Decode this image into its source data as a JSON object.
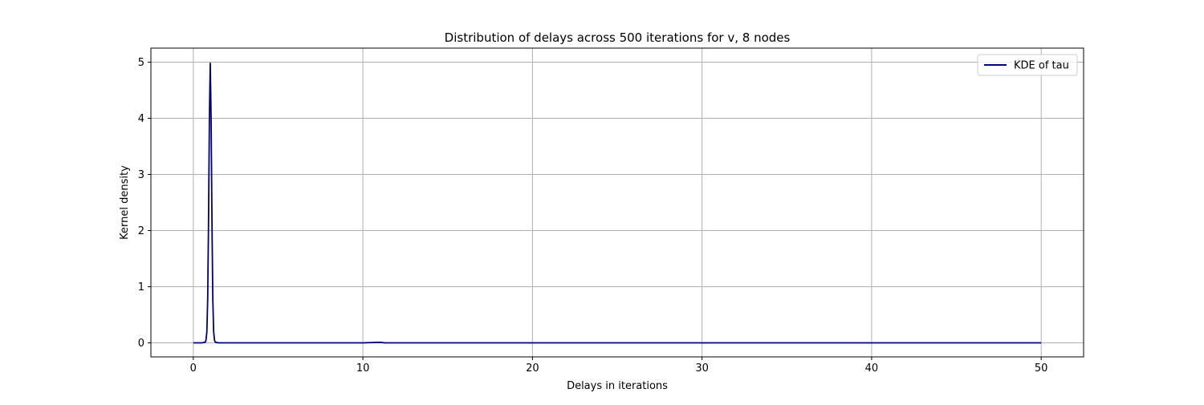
{
  "chart_data": {
    "type": "line",
    "title": "Distribution of delays across 500 iterations for v, 8 nodes",
    "xlabel": "Delays in iterations",
    "ylabel": "Kernel density",
    "xlim": [
      -2.5,
      52.5
    ],
    "ylim": [
      -0.25,
      5.25
    ],
    "x_ticks": [
      0,
      10,
      20,
      30,
      40,
      50
    ],
    "y_ticks": [
      0,
      1,
      2,
      3,
      4,
      5
    ],
    "grid": true,
    "legend_position": "top-right",
    "series": [
      {
        "name": "KDE of tau",
        "color": "#00007f",
        "x": [
          0,
          0.5,
          0.7,
          0.75,
          0.8,
          0.85,
          0.9,
          0.95,
          1.0,
          1.05,
          1.1,
          1.15,
          1.2,
          1.25,
          1.3,
          1.5,
          2,
          5,
          10,
          11,
          11.3,
          12,
          20,
          30,
          40,
          50
        ],
        "y": [
          0,
          0,
          0.01,
          0.05,
          0.2,
          0.8,
          2.2,
          4.0,
          4.98,
          4.0,
          2.2,
          0.8,
          0.2,
          0.05,
          0.01,
          0,
          0,
          0,
          0,
          0.01,
          0,
          0,
          0,
          0,
          0,
          0
        ]
      }
    ]
  }
}
